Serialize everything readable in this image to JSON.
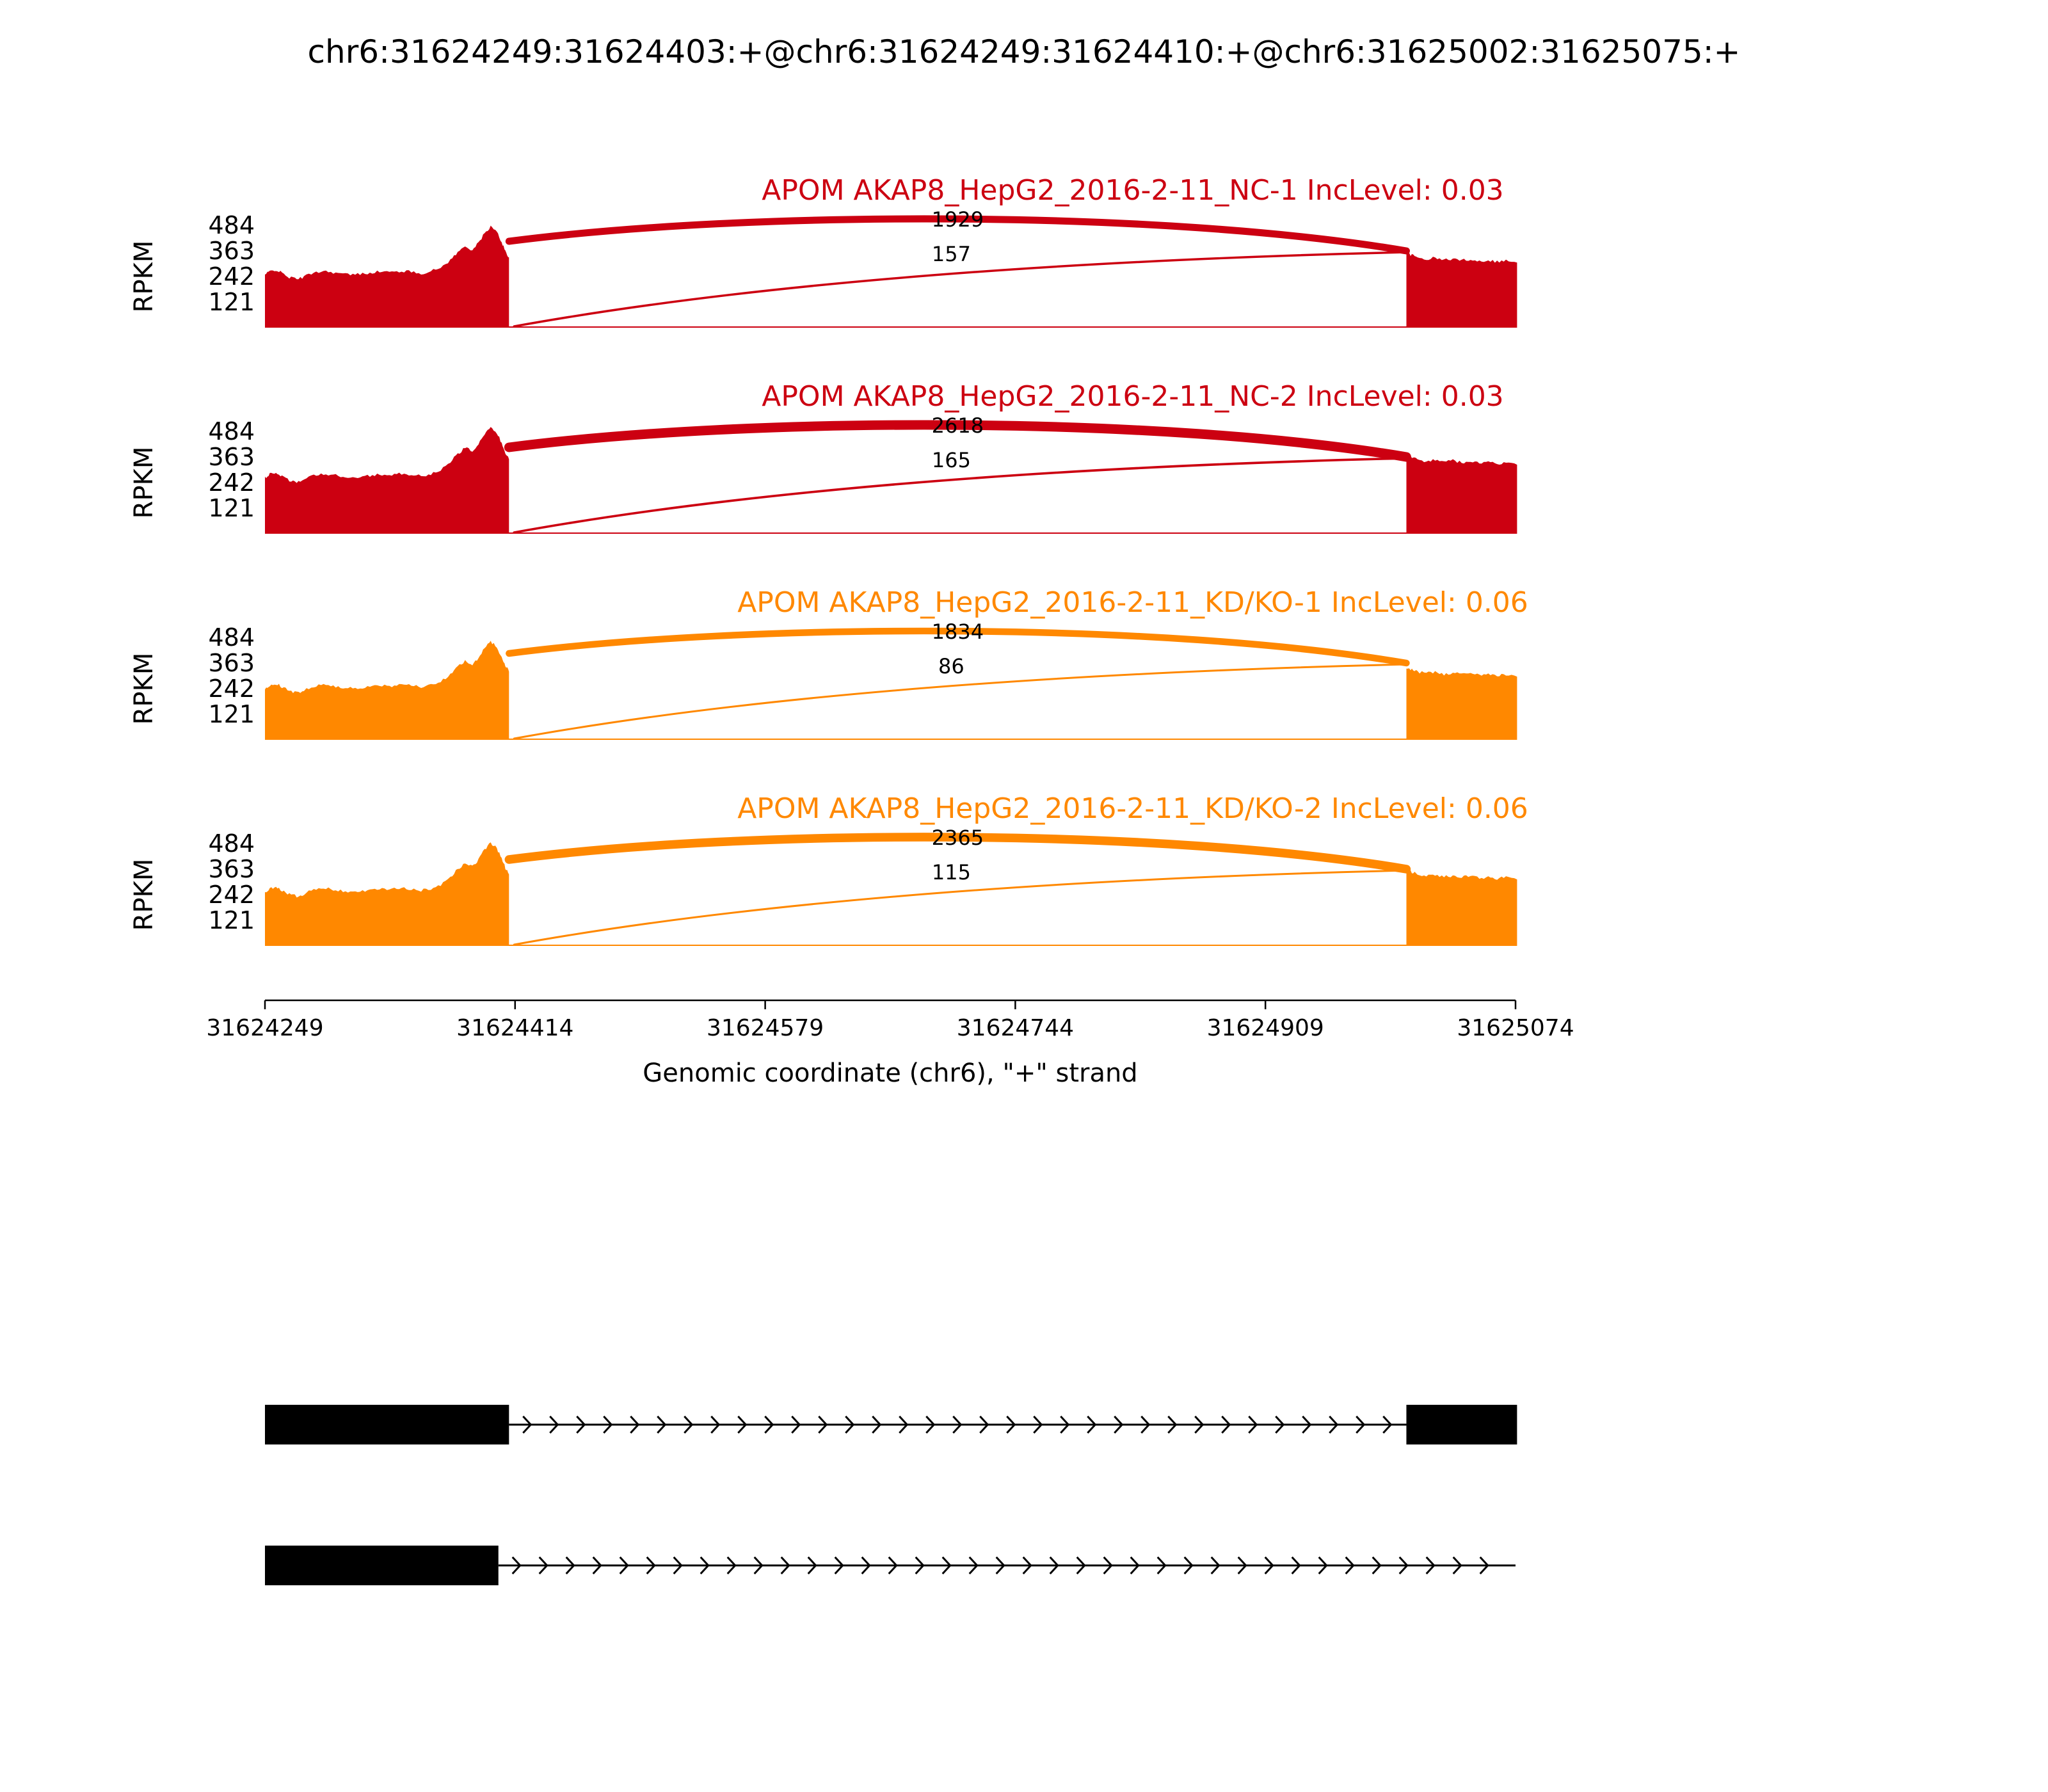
{
  "title": "chr6:31624249:31624403:+@chr6:31624249:31624410:+@chr6:31625002:31625075:+",
  "chart_data": {
    "type": "area",
    "subtype": "sashimi-plot",
    "title": "chr6:31624249:31624403:+@chr6:31624249:31624410:+@chr6:31625002:31625075:+",
    "xlabel": "Genomic coordinate (chr6), \"+\" strand",
    "ylabel": "RPKM",
    "x_range": [
      31624249,
      31625074
    ],
    "x_ticks": [
      31624249,
      31624414,
      31624579,
      31624744,
      31624909,
      31625074
    ],
    "y_ticks": [
      121,
      242,
      363,
      484
    ],
    "y_max": 484,
    "exons": {
      "left": [
        31624249,
        31624410
      ],
      "right": [
        31625002,
        31625075
      ]
    },
    "tracks": [
      {
        "label": "APOM AKAP8_HepG2_2016-2-11_NC-1 IncLevel: 0.03",
        "color": "#CC0011",
        "junction_counts": [
          1929,
          157
        ],
        "amp": 1.0
      },
      {
        "label": "APOM AKAP8_HepG2_2016-2-11_NC-2 IncLevel: 0.03",
        "color": "#CC0011",
        "junction_counts": [
          2618,
          165
        ],
        "amp": 1.06
      },
      {
        "label": "APOM AKAP8_HepG2_2016-2-11_KD/KO-1 IncLevel: 0.06",
        "color": "#FF8800",
        "junction_counts": [
          1834,
          86
        ],
        "amp": 0.97
      },
      {
        "label": "APOM AKAP8_HepG2_2016-2-11_KD/KO-2 IncLevel: 0.06",
        "color": "#FF8800",
        "junction_counts": [
          2365,
          115
        ],
        "amp": 1.02
      }
    ],
    "coverage_profile_left": [
      [
        0.0,
        250
      ],
      [
        0.02,
        266
      ],
      [
        0.045,
        274
      ],
      [
        0.07,
        258
      ],
      [
        0.1,
        238
      ],
      [
        0.13,
        230
      ],
      [
        0.16,
        240
      ],
      [
        0.2,
        262
      ],
      [
        0.24,
        268
      ],
      [
        0.28,
        262
      ],
      [
        0.32,
        254
      ],
      [
        0.36,
        250
      ],
      [
        0.4,
        255
      ],
      [
        0.44,
        262
      ],
      [
        0.48,
        266
      ],
      [
        0.52,
        262
      ],
      [
        0.56,
        268
      ],
      [
        0.6,
        264
      ],
      [
        0.64,
        257
      ],
      [
        0.68,
        266
      ],
      [
        0.72,
        284
      ],
      [
        0.76,
        320
      ],
      [
        0.79,
        356
      ],
      [
        0.82,
        384
      ],
      [
        0.85,
        368
      ],
      [
        0.875,
        400
      ],
      [
        0.9,
        446
      ],
      [
        0.925,
        478
      ],
      [
        0.95,
        452
      ],
      [
        0.97,
        404
      ],
      [
        0.985,
        362
      ],
      [
        1.0,
        332
      ]
    ],
    "coverage_profile_right": [
      [
        0.0,
        354
      ],
      [
        0.05,
        342
      ],
      [
        0.1,
        332
      ],
      [
        0.18,
        324
      ],
      [
        0.26,
        330
      ],
      [
        0.34,
        320
      ],
      [
        0.42,
        326
      ],
      [
        0.5,
        318
      ],
      [
        0.58,
        324
      ],
      [
        0.66,
        314
      ],
      [
        0.74,
        320
      ],
      [
        0.82,
        312
      ],
      [
        0.9,
        318
      ],
      [
        1.0,
        308
      ]
    ],
    "isoforms": [
      {
        "exons": [
          [
            31624249,
            31624410
          ],
          [
            31625002,
            31625075
          ]
        ],
        "intron_line": [
          31624410,
          31625002
        ]
      },
      {
        "exons": [
          [
            31624249,
            31624403
          ]
        ],
        "intron_line": [
          31624403,
          31625074
        ]
      }
    ]
  }
}
